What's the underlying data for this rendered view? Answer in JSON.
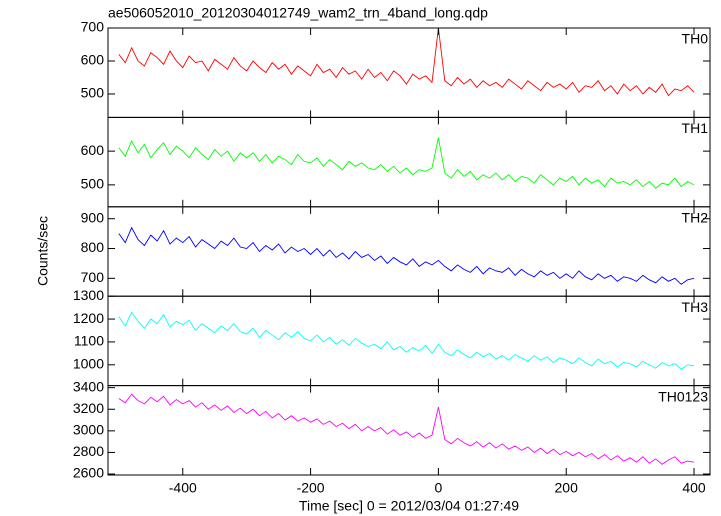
{
  "chart_data": {
    "type": "line",
    "title": "ae506052010_20120304012749_wam2_trn_4band_long.qdp",
    "x_label": "Time [sec] 0 = 2012/03/04 01:27:49",
    "y_label": "Counts/sec",
    "xlim": [
      -517,
      425
    ],
    "xticks": [
      -400,
      -200,
      0,
      200,
      400
    ],
    "x": [
      -500,
      -490,
      -480,
      -470,
      -460,
      -450,
      -440,
      -430,
      -420,
      -410,
      -400,
      -390,
      -380,
      -370,
      -360,
      -350,
      -340,
      -330,
      -320,
      -310,
      -300,
      -290,
      -280,
      -270,
      -260,
      -250,
      -240,
      -230,
      -220,
      -210,
      -200,
      -190,
      -180,
      -170,
      -160,
      -150,
      -140,
      -130,
      -120,
      -110,
      -100,
      -90,
      -80,
      -70,
      -60,
      -50,
      -40,
      -30,
      -20,
      -10,
      0,
      10,
      20,
      30,
      40,
      50,
      60,
      70,
      80,
      90,
      100,
      110,
      120,
      130,
      140,
      150,
      160,
      170,
      180,
      190,
      200,
      210,
      220,
      230,
      240,
      250,
      260,
      270,
      280,
      290,
      300,
      310,
      320,
      330,
      340,
      350,
      360,
      370,
      380,
      390,
      400
    ],
    "series": [
      {
        "name": "TH0",
        "color": "#ff0000",
        "ylim": [
          429,
          700
        ],
        "yticks": [
          500,
          600,
          700
        ],
        "values": [
          620,
          595,
          640,
          600,
          585,
          625,
          610,
          590,
          630,
          600,
          580,
          615,
          595,
          600,
          570,
          605,
          590,
          575,
          610,
          585,
          570,
          600,
          580,
          565,
          595,
          575,
          590,
          560,
          585,
          570,
          555,
          590,
          565,
          575,
          550,
          580,
          560,
          570,
          545,
          575,
          550,
          565,
          540,
          570,
          555,
          530,
          560,
          545,
          555,
          535,
          700,
          540,
          525,
          550,
          530,
          545,
          520,
          540,
          525,
          535,
          520,
          545,
          530,
          515,
          540,
          525,
          510,
          535,
          520,
          530,
          515,
          535,
          505,
          525,
          520,
          540,
          510,
          525,
          500,
          530,
          510,
          525,
          500,
          520,
          505,
          530,
          495,
          515,
          510,
          525,
          505
        ]
      },
      {
        "name": "TH1",
        "color": "#00ff00",
        "ylim": [
          435,
          700
        ],
        "yticks": [
          500,
          600
        ],
        "values": [
          610,
          585,
          630,
          595,
          620,
          580,
          605,
          625,
          590,
          615,
          600,
          580,
          610,
          590,
          575,
          605,
          585,
          600,
          570,
          595,
          580,
          595,
          570,
          590,
          565,
          585,
          575,
          560,
          590,
          570,
          565,
          580,
          555,
          575,
          560,
          545,
          570,
          555,
          565,
          550,
          545,
          560,
          540,
          555,
          535,
          550,
          530,
          545,
          540,
          550,
          640,
          535,
          520,
          545,
          525,
          540,
          515,
          530,
          520,
          535,
          515,
          530,
          510,
          525,
          520,
          505,
          530,
          515,
          500,
          520,
          510,
          525,
          500,
          520,
          505,
          515,
          495,
          520,
          505,
          510,
          500,
          515,
          495,
          510,
          490,
          505,
          500,
          520,
          495,
          510,
          500
        ]
      },
      {
        "name": "TH2",
        "color": "#0000ff",
        "ylim": [
          640,
          940
        ],
        "yticks": [
          700,
          800,
          900
        ],
        "values": [
          850,
          820,
          870,
          830,
          810,
          845,
          825,
          860,
          815,
          835,
          820,
          840,
          805,
          830,
          815,
          800,
          825,
          810,
          835,
          805,
          800,
          820,
          790,
          810,
          795,
          815,
          785,
          805,
          790,
          800,
          780,
          800,
          775,
          795,
          770,
          785,
          765,
          790,
          770,
          780,
          760,
          775,
          750,
          770,
          755,
          745,
          765,
          740,
          755,
          745,
          760,
          740,
          725,
          745,
          730,
          720,
          740,
          715,
          735,
          725,
          720,
          735,
          710,
          730,
          715,
          705,
          725,
          710,
          720,
          700,
          715,
          700,
          725,
          705,
          695,
          715,
          700,
          710,
          690,
          705,
          700,
          690,
          710,
          695,
          685,
          705,
          690,
          700,
          680,
          695,
          700
        ]
      },
      {
        "name": "TH3",
        "color": "#00ffff",
        "ylim": [
          909,
          1300
        ],
        "yticks": [
          1000,
          1100,
          1200,
          1300
        ],
        "values": [
          1210,
          1170,
          1230,
          1190,
          1160,
          1200,
          1180,
          1220,
          1165,
          1190,
          1175,
          1195,
          1150,
          1180,
          1160,
          1140,
          1170,
          1150,
          1180,
          1145,
          1135,
          1160,
          1120,
          1150,
          1130,
          1110,
          1140,
          1120,
          1145,
          1115,
          1105,
          1130,
          1100,
          1120,
          1090,
          1110,
          1085,
          1115,
          1095,
          1080,
          1090,
          1070,
          1100,
          1065,
          1080,
          1055,
          1075,
          1060,
          1085,
          1050,
          1090,
          1055,
          1040,
          1065,
          1045,
          1030,
          1055,
          1035,
          1050,
          1025,
          1040,
          1020,
          1045,
          1030,
          1015,
          1040,
          1020,
          1035,
          1010,
          1030,
          1020,
          1005,
          1030,
          1010,
          995,
          1025,
          1005,
          1015,
          990,
          1010,
          1005,
          990,
          1015,
          1000,
          985,
          1010,
          995,
          1005,
          980,
          1000,
          995
        ]
      },
      {
        "name": "TH0123",
        "color": "#ff00ff",
        "ylim": [
          2591,
          3419
        ],
        "yticks": [
          2600,
          2800,
          3000,
          3200,
          3400
        ],
        "values": [
          3300,
          3260,
          3340,
          3280,
          3250,
          3310,
          3270,
          3320,
          3240,
          3290,
          3250,
          3280,
          3220,
          3260,
          3200,
          3240,
          3190,
          3230,
          3170,
          3210,
          3160,
          3200,
          3140,
          3180,
          3120,
          3160,
          3100,
          3140,
          3090,
          3120,
          3080,
          3110,
          3060,
          3090,
          3040,
          3070,
          3020,
          3060,
          3000,
          3040,
          3000,
          3030,
          2970,
          3010,
          2960,
          2990,
          2940,
          2980,
          2930,
          2960,
          3220,
          2920,
          2880,
          2930,
          2890,
          2860,
          2900,
          2850,
          2890,
          2840,
          2880,
          2830,
          2860,
          2820,
          2850,
          2800,
          2840,
          2790,
          2830,
          2780,
          2810,
          2770,
          2800,
          2760,
          2790,
          2740,
          2780,
          2730,
          2770,
          2720,
          2750,
          2710,
          2760,
          2700,
          2740,
          2690,
          2730,
          2760,
          2700,
          2720,
          2710
        ]
      }
    ]
  }
}
